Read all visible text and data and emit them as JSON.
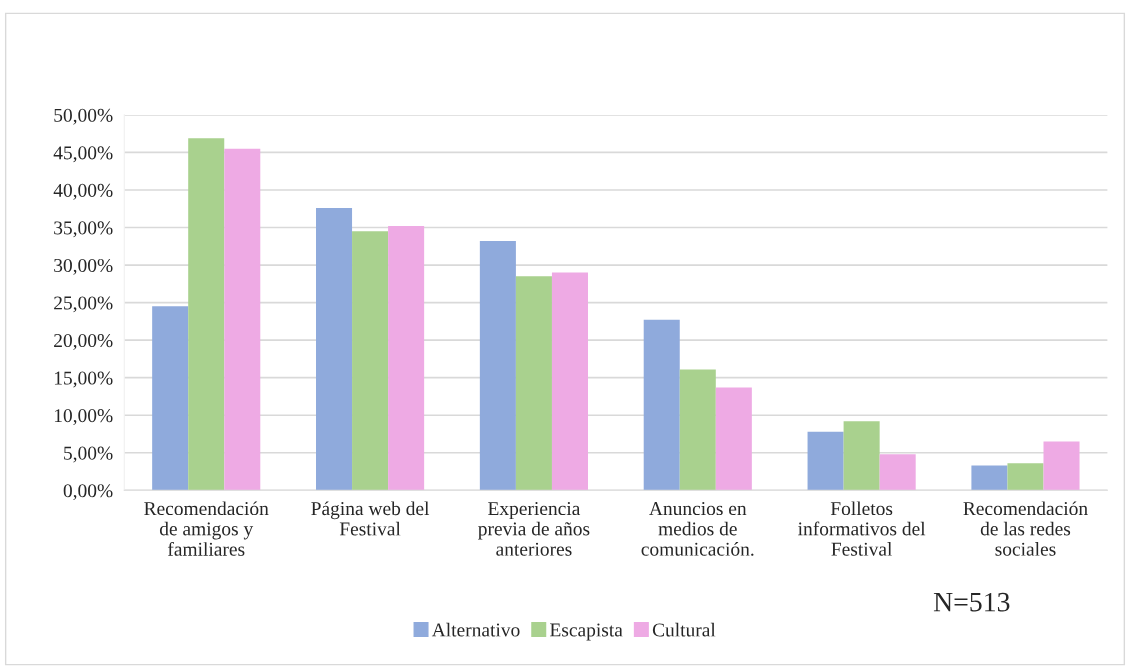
{
  "chart_data": {
    "type": "bar",
    "categories": [
      "Recomendación\nde amigos y\nfamiliares",
      "Página web del\nFestival",
      "Experiencia\nprevia de años\nanteriores",
      "Anuncios en\nmedios de\ncomunicación.",
      "Folletos\ninformativos del\nFestival",
      "Recomendación\nde las redes\nsociales"
    ],
    "series": [
      {
        "name": "Alternativo",
        "color": "#8faadc",
        "values": [
          24.5,
          37.6,
          33.2,
          22.7,
          7.8,
          3.3
        ]
      },
      {
        "name": "Escapista",
        "color": "#a9d18e",
        "values": [
          46.9,
          34.5,
          28.5,
          16.1,
          9.2,
          3.6
        ]
      },
      {
        "name": "Cultural",
        "color": "#eeaae4",
        "values": [
          45.5,
          35.2,
          29.0,
          13.7,
          4.8,
          6.5
        ]
      }
    ],
    "ylim": [
      0,
      50
    ],
    "yticks": [
      {
        "value": 0,
        "label": "0,00%"
      },
      {
        "value": 5,
        "label": "5,00%"
      },
      {
        "value": 10,
        "label": "10,00%"
      },
      {
        "value": 15,
        "label": "15,00%"
      },
      {
        "value": 20,
        "label": "20,00%"
      },
      {
        "value": 25,
        "label": "25,00%"
      },
      {
        "value": 30,
        "label": "30,00%"
      },
      {
        "value": 35,
        "label": "35,00%"
      },
      {
        "value": 40,
        "label": "40,00%"
      },
      {
        "value": 45,
        "label": "45,00%"
      },
      {
        "value": 50,
        "label": "50,00%"
      }
    ],
    "grid": "y",
    "legend": "bottom",
    "annotations": [
      "N=513"
    ]
  }
}
